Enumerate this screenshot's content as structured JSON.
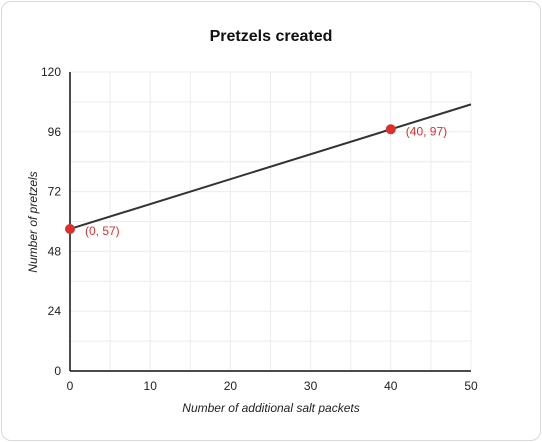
{
  "chart_data": {
    "type": "line",
    "title": "Pretzels created",
    "xlabel": "Number of additional salt packets",
    "ylabel": "Number of pretzels",
    "xlim": [
      0,
      50
    ],
    "ylim": [
      0,
      120
    ],
    "x_ticks": [
      0,
      10,
      20,
      30,
      40,
      50
    ],
    "y_ticks": [
      0,
      24,
      48,
      72,
      96,
      120
    ],
    "grid": true,
    "series": [
      {
        "x": [
          0,
          50
        ],
        "y": [
          57,
          107
        ],
        "color": "#333333"
      }
    ],
    "points": [
      {
        "x": 0,
        "y": 57,
        "label": "(0, 57)"
      },
      {
        "x": 40,
        "y": 97,
        "label": "(40, 97)"
      }
    ],
    "point_color": "#d93030"
  }
}
